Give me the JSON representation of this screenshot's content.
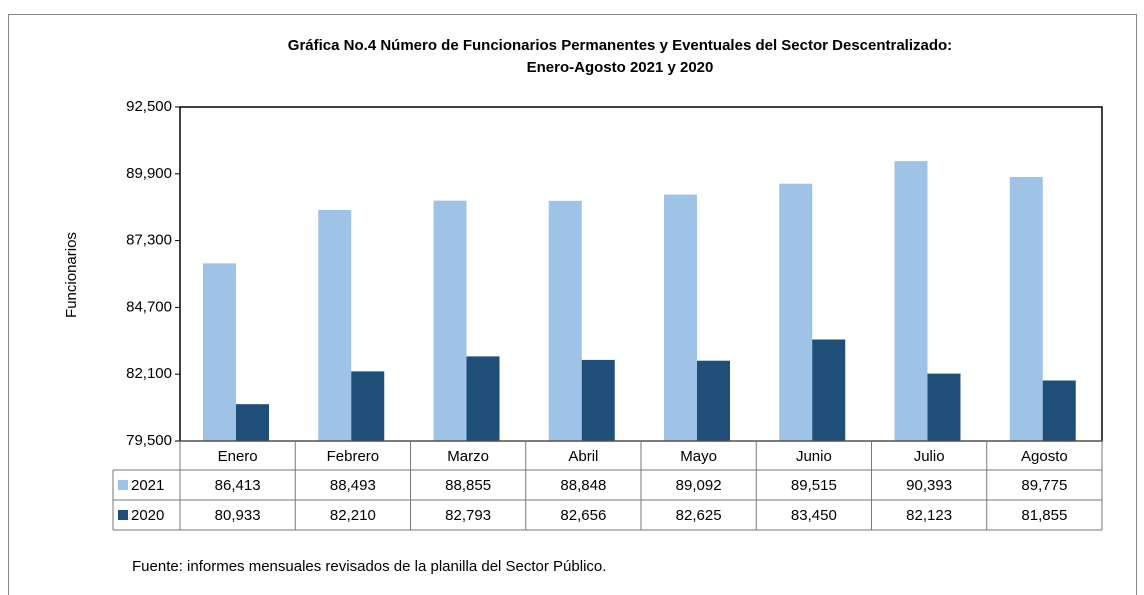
{
  "chart_data": {
    "type": "bar",
    "title": [
      "Gráfica No.4  Número de Funcionarios Permanentes y Eventuales del Sector Descentralizado:",
      "Enero-Agosto 2021 y 2020"
    ],
    "y_label": "Funcionarios",
    "categories": [
      "Enero",
      "Febrero",
      "Marzo",
      "Abril",
      "Mayo",
      "Junio",
      "Julio",
      "Agosto"
    ],
    "series": [
      {
        "name": "2021",
        "color": "#9fc3e7",
        "values": [
          86413,
          88493,
          88855,
          88848,
          89092,
          89515,
          90393,
          89775
        ],
        "value_labels": [
          "86,413",
          "88,493",
          "88,855",
          "88,848",
          "89,092",
          "89,515",
          "90,393",
          "89,775"
        ]
      },
      {
        "name": "2020",
        "color": "#1f4e79",
        "values": [
          80933,
          82210,
          82793,
          82656,
          82625,
          83450,
          82123,
          81855
        ],
        "value_labels": [
          "80,933",
          "82,210",
          "82,793",
          "82,656",
          "82,625",
          "83,450",
          "82,123",
          "81,855"
        ]
      }
    ],
    "ylim": [
      79500,
      92500
    ],
    "yticks": [
      {
        "value": 79500,
        "label": "79,500"
      },
      {
        "value": 82100,
        "label": "82,100"
      },
      {
        "value": 84700,
        "label": "84,700"
      },
      {
        "value": 87300,
        "label": "87,300"
      },
      {
        "value": 89900,
        "label": "89,900"
      },
      {
        "value": 92500,
        "label": "92,500"
      }
    ],
    "source": "Fuente: informes mensuales revisados de la planilla del Sector Público."
  }
}
